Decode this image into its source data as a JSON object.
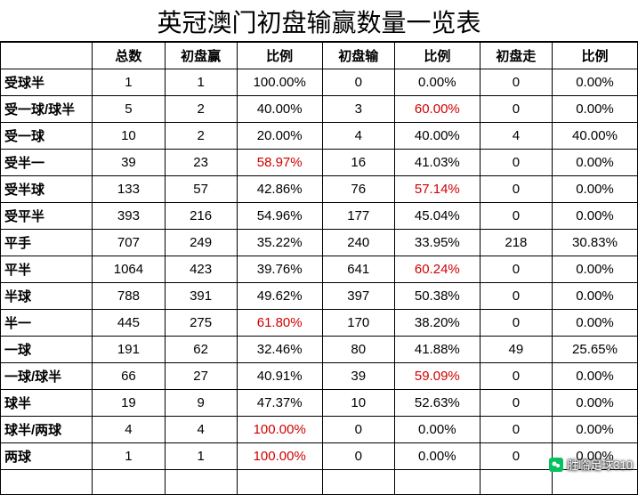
{
  "title": "英冠澳门初盘输赢数量一览表",
  "watermark": "胜临足球310",
  "columns": [
    "",
    "总数",
    "初盘赢",
    "比例",
    "初盘输",
    "比例",
    "初盘走",
    "比例"
  ],
  "highlight_color": "#d00000",
  "rows": [
    {
      "label": "受球半",
      "cells": [
        "1",
        "1",
        "100.00%",
        "0",
        "0.00%",
        "0",
        "0.00%"
      ],
      "red": []
    },
    {
      "label": "受一球/球半",
      "cells": [
        "5",
        "2",
        "40.00%",
        "3",
        "60.00%",
        "0",
        "0.00%"
      ],
      "red": [
        4
      ]
    },
    {
      "label": "受一球",
      "cells": [
        "10",
        "2",
        "20.00%",
        "4",
        "40.00%",
        "4",
        "40.00%"
      ],
      "red": []
    },
    {
      "label": "受半一",
      "cells": [
        "39",
        "23",
        "58.97%",
        "16",
        "41.03%",
        "0",
        "0.00%"
      ],
      "red": [
        2
      ]
    },
    {
      "label": "受半球",
      "cells": [
        "133",
        "57",
        "42.86%",
        "76",
        "57.14%",
        "0",
        "0.00%"
      ],
      "red": [
        4
      ]
    },
    {
      "label": "受平半",
      "cells": [
        "393",
        "216",
        "54.96%",
        "177",
        "45.04%",
        "0",
        "0.00%"
      ],
      "red": []
    },
    {
      "label": "平手",
      "cells": [
        "707",
        "249",
        "35.22%",
        "240",
        "33.95%",
        "218",
        "30.83%"
      ],
      "red": []
    },
    {
      "label": "平半",
      "cells": [
        "1064",
        "423",
        "39.76%",
        "641",
        "60.24%",
        "0",
        "0.00%"
      ],
      "red": [
        4
      ]
    },
    {
      "label": "半球",
      "cells": [
        "788",
        "391",
        "49.62%",
        "397",
        "50.38%",
        "0",
        "0.00%"
      ],
      "red": []
    },
    {
      "label": "半一",
      "cells": [
        "445",
        "275",
        "61.80%",
        "170",
        "38.20%",
        "0",
        "0.00%"
      ],
      "red": [
        2
      ]
    },
    {
      "label": "一球",
      "cells": [
        "191",
        "62",
        "32.46%",
        "80",
        "41.88%",
        "49",
        "25.65%"
      ],
      "red": []
    },
    {
      "label": "一球/球半",
      "cells": [
        "66",
        "27",
        "40.91%",
        "39",
        "59.09%",
        "0",
        "0.00%"
      ],
      "red": [
        4
      ]
    },
    {
      "label": "球半",
      "cells": [
        "19",
        "9",
        "47.37%",
        "10",
        "52.63%",
        "0",
        "0.00%"
      ],
      "red": []
    },
    {
      "label": "球半/两球",
      "cells": [
        "4",
        "4",
        "100.00%",
        "0",
        "0.00%",
        "0",
        "0.00%"
      ],
      "red": [
        2
      ]
    },
    {
      "label": "两球",
      "cells": [
        "1",
        "1",
        "100.00%",
        "0",
        "0.00%",
        "0",
        "0.00%"
      ],
      "red": [
        2
      ]
    },
    {
      "label": "",
      "cells": [
        "",
        "",
        "",
        "",
        "",
        "",
        ""
      ],
      "red": []
    }
  ]
}
